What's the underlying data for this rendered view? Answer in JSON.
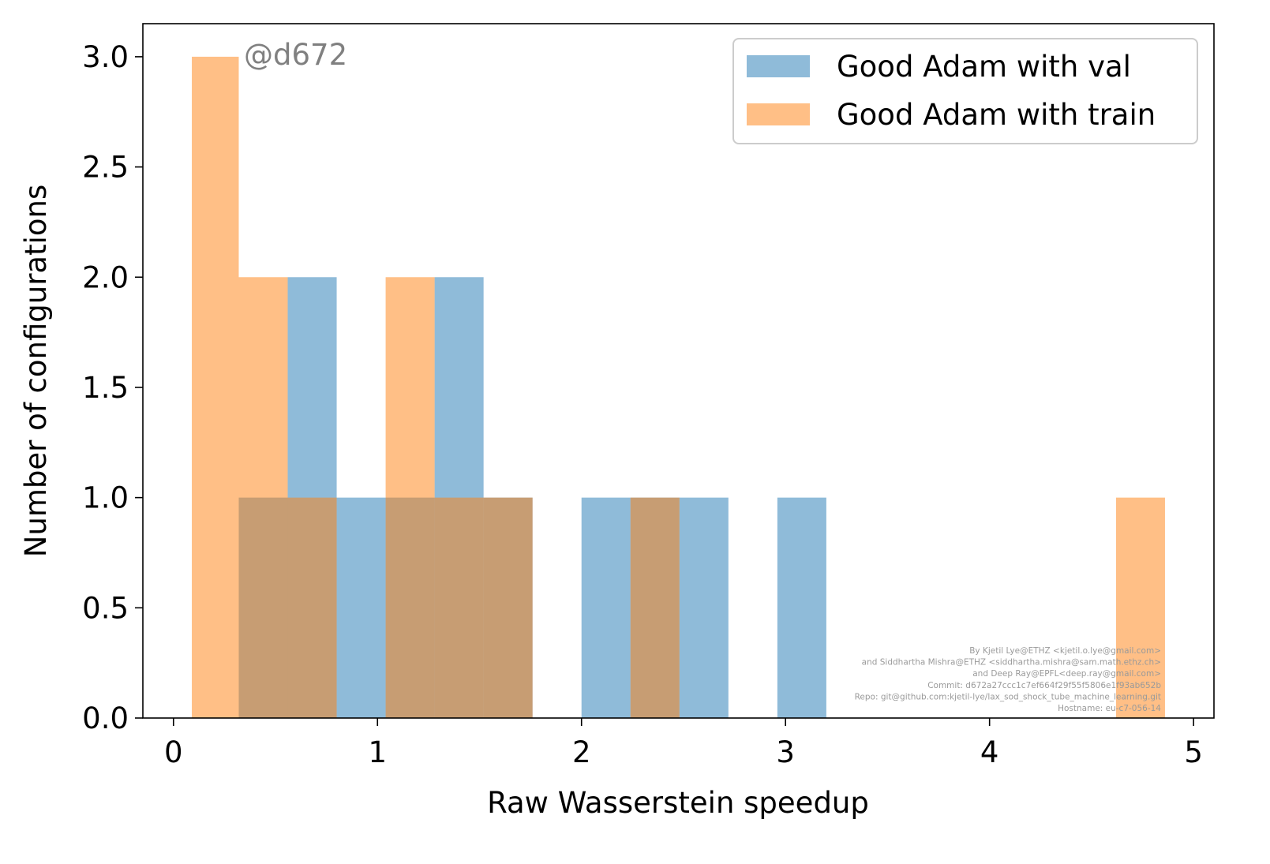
{
  "chart_data": {
    "type": "histogram",
    "title": "",
    "xlabel": "Raw Wasserstein speedup",
    "ylabel": "Number of configurations",
    "xlim": [
      -0.15,
      5.1
    ],
    "ylim": [
      0,
      3.15
    ],
    "xticks": [
      0,
      1,
      2,
      3,
      4,
      5
    ],
    "xtick_labels": [
      "0",
      "1",
      "2",
      "3",
      "4",
      "5"
    ],
    "yticks": [
      0,
      0.5,
      1,
      1.5,
      2,
      2.5,
      3
    ],
    "ytick_labels": [
      "0.0",
      "0.5",
      "1.0",
      "1.5",
      "2.0",
      "2.5",
      "3.0"
    ],
    "grid": false,
    "legend_position": "top-right",
    "series": [
      {
        "name": "Good Adam with val",
        "color": "#1f77b4",
        "opacity": 0.5,
        "bins": [
          {
            "x0": 0.32,
            "x1": 0.56,
            "count": 1
          },
          {
            "x0": 0.56,
            "x1": 0.8,
            "count": 2
          },
          {
            "x0": 0.8,
            "x1": 1.04,
            "count": 1
          },
          {
            "x0": 1.04,
            "x1": 1.28,
            "count": 1
          },
          {
            "x0": 1.28,
            "x1": 1.52,
            "count": 2
          },
          {
            "x0": 1.52,
            "x1": 1.76,
            "count": 1
          },
          {
            "x0": 2.0,
            "x1": 2.24,
            "count": 1
          },
          {
            "x0": 2.24,
            "x1": 2.48,
            "count": 1
          },
          {
            "x0": 2.48,
            "x1": 2.72,
            "count": 1
          },
          {
            "x0": 2.96,
            "x1": 3.2,
            "count": 1
          }
        ]
      },
      {
        "name": "Good Adam with train",
        "color": "#ff7f0e",
        "opacity": 0.5,
        "bins": [
          {
            "x0": 0.09,
            "x1": 0.32,
            "count": 3
          },
          {
            "x0": 0.32,
            "x1": 0.56,
            "count": 2
          },
          {
            "x0": 0.56,
            "x1": 0.8,
            "count": 1
          },
          {
            "x0": 1.04,
            "x1": 1.28,
            "count": 2
          },
          {
            "x0": 1.28,
            "x1": 1.52,
            "count": 1
          },
          {
            "x0": 1.52,
            "x1": 1.76,
            "count": 1
          },
          {
            "x0": 2.24,
            "x1": 2.48,
            "count": 1
          },
          {
            "x0": 4.62,
            "x1": 4.86,
            "count": 1
          }
        ]
      }
    ],
    "annotation": "@d672",
    "watermark_lines": [
      "By Kjetil Lye@ETHZ <kjetil.o.lye@gmail.com>",
      "and Siddhartha Mishra@ETHZ <siddhartha.mishra@sam.math.ethz.ch>",
      "and Deep Ray@EPFL<deep.ray@gmail.com>",
      "Commit: d672a27ccc1c7ef664f29f55f5806e1f93ab652b",
      "Repo: git@github.com:kjetil-lye/lax_sod_shock_tube_machine_learning.git",
      "Hostname: eu-c7-056-14"
    ]
  }
}
